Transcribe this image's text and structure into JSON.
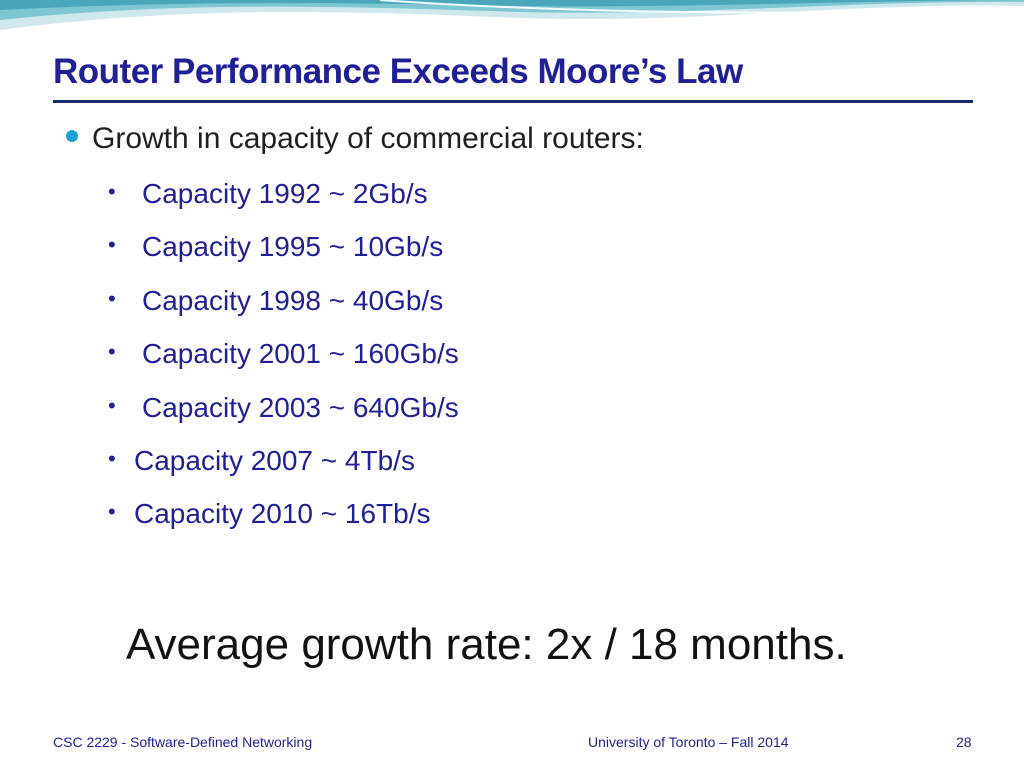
{
  "slide": {
    "title": "Router Performance Exceeds Moore’s Law",
    "main_bullet": "Growth in capacity of commercial routers:",
    "sub_bullets": [
      "Capacity 1992 ~ 2Gb/s",
      "Capacity 1995 ~ 10Gb/s",
      "Capacity 1998 ~ 40Gb/s",
      "Capacity 2001 ~ 160Gb/s",
      "Capacity 2003 ~ 640Gb/s",
      "Capacity 2007 ~ 4Tb/s",
      "Capacity 2010 ~ 16Tb/s"
    ],
    "summary": "Average growth rate: 2x / 18 months."
  },
  "footer": {
    "course": "CSC 2229 - Software-Defined Networking",
    "institution": "University of Toronto – Fall 2014",
    "page_number": "28"
  },
  "colors": {
    "title": "#1f1f96",
    "sub_bullet_text": "#1f1f96",
    "main_bullet_dot": "#1ea1d6",
    "wave_teal": "#5fb9c9"
  }
}
